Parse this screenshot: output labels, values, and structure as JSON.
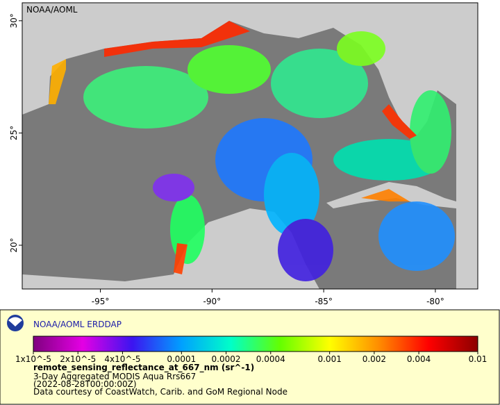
{
  "map": {
    "corner_label": "NOAA/AOML",
    "lonlim": [
      -98.5,
      -78.1
    ],
    "latlim": [
      18.05,
      30.8
    ],
    "lonticks": [
      {
        "value": -95,
        "label": "-95°"
      },
      {
        "value": -90,
        "label": "-90°"
      },
      {
        "value": -85,
        "label": "-85°"
      },
      {
        "value": -80,
        "label": "-80°"
      }
    ],
    "latticks": [
      {
        "value": 20,
        "label": "20°"
      },
      {
        "value": 25,
        "label": "25°"
      },
      {
        "value": 30,
        "label": "30°"
      }
    ]
  },
  "legend": {
    "brand": "NOAA/AOML ERDDAP",
    "scale": "log",
    "colorlim": [
      1e-05,
      0.01
    ],
    "colors": [
      "#7f007f",
      "#e400e4",
      "#3c14f0",
      "#00a0ff",
      "#00ffc8",
      "#64ff00",
      "#ffff00",
      "#ff8c00",
      "#ff0000",
      "#8c0000"
    ],
    "ticks": [
      {
        "value": 1e-05,
        "label": "1x10^-5"
      },
      {
        "value": 2e-05,
        "label": "2x10^-5"
      },
      {
        "value": 4e-05,
        "label": "4x10^-5"
      },
      0.0001,
      0.0002,
      0.0004,
      0.001,
      0.002,
      0.004,
      0.01
    ],
    "variable": "remote_sensing_reflectance_at_667_nm (sr^-1)",
    "dataset": "3-Day Aggregated MODIS Aqua Rrs667",
    "time": "(2022-08-28T00:00:00Z)",
    "credit": "Data courtesy of CoastWatch, Carib. and GoM Regional Node"
  }
}
